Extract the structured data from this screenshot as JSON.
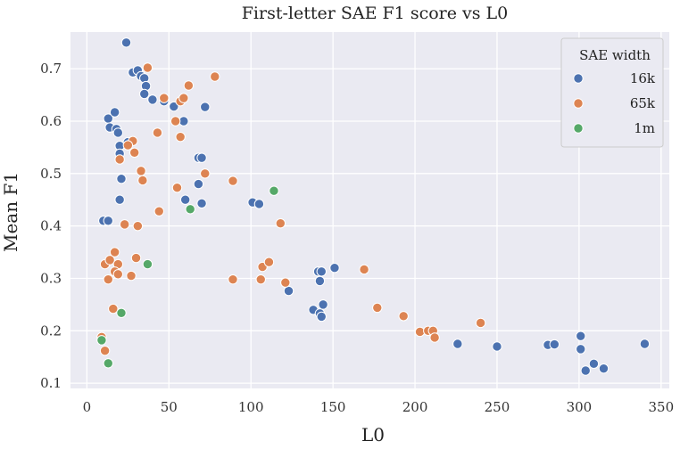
{
  "chart_data": {
    "type": "scatter",
    "title": "First-letter SAE F1 score vs L0",
    "xlabel": "L0",
    "ylabel": "Mean F1",
    "xlim": [
      -10,
      355
    ],
    "ylim": [
      0.09,
      0.77
    ],
    "xticks": [
      0,
      50,
      100,
      150,
      200,
      250,
      300,
      350
    ],
    "yticks": [
      0.1,
      0.2,
      0.3,
      0.4,
      0.5,
      0.6,
      0.7
    ],
    "grid": true,
    "legend": {
      "title": "SAE width",
      "placement": "top-right"
    },
    "series": [
      {
        "name": "16k",
        "color": "#4c72b0",
        "points": [
          [
            24,
            0.75
          ],
          [
            28,
            0.693
          ],
          [
            31,
            0.697
          ],
          [
            33,
            0.686
          ],
          [
            35,
            0.682
          ],
          [
            36,
            0.667
          ],
          [
            35,
            0.652
          ],
          [
            40,
            0.641
          ],
          [
            47,
            0.638
          ],
          [
            53,
            0.628
          ],
          [
            72,
            0.627
          ],
          [
            13,
            0.605
          ],
          [
            14,
            0.588
          ],
          [
            17,
            0.617
          ],
          [
            18,
            0.585
          ],
          [
            19,
            0.578
          ],
          [
            20,
            0.553
          ],
          [
            20,
            0.538
          ],
          [
            25,
            0.56
          ],
          [
            21,
            0.49
          ],
          [
            20,
            0.45
          ],
          [
            10,
            0.41
          ],
          [
            13,
            0.41
          ],
          [
            59,
            0.6
          ],
          [
            68,
            0.53
          ],
          [
            70,
            0.53
          ],
          [
            68,
            0.48
          ],
          [
            60,
            0.45
          ],
          [
            70,
            0.443
          ],
          [
            101,
            0.445
          ],
          [
            105,
            0.442
          ],
          [
            123,
            0.276
          ],
          [
            138,
            0.24
          ],
          [
            141,
            0.313
          ],
          [
            143,
            0.313
          ],
          [
            142,
            0.295
          ],
          [
            142,
            0.233
          ],
          [
            143,
            0.227
          ],
          [
            144,
            0.25
          ],
          [
            151,
            0.32
          ],
          [
            226,
            0.175
          ],
          [
            250,
            0.17
          ],
          [
            281,
            0.173
          ],
          [
            285,
            0.174
          ],
          [
            301,
            0.19
          ],
          [
            301,
            0.165
          ],
          [
            304,
            0.124
          ],
          [
            309,
            0.137
          ],
          [
            315,
            0.128
          ],
          [
            340,
            0.175
          ]
        ]
      },
      {
        "name": "65k",
        "color": "#dd8452",
        "points": [
          [
            37,
            0.702
          ],
          [
            62,
            0.668
          ],
          [
            78,
            0.685
          ],
          [
            47,
            0.644
          ],
          [
            57,
            0.638
          ],
          [
            59,
            0.644
          ],
          [
            54,
            0.6
          ],
          [
            57,
            0.57
          ],
          [
            43,
            0.578
          ],
          [
            28,
            0.562
          ],
          [
            25,
            0.554
          ],
          [
            29,
            0.54
          ],
          [
            20,
            0.527
          ],
          [
            33,
            0.505
          ],
          [
            34,
            0.487
          ],
          [
            55,
            0.473
          ],
          [
            72,
            0.5
          ],
          [
            89,
            0.486
          ],
          [
            44,
            0.428
          ],
          [
            23,
            0.403
          ],
          [
            31,
            0.4
          ],
          [
            118,
            0.405
          ],
          [
            17,
            0.35
          ],
          [
            11,
            0.327
          ],
          [
            14,
            0.335
          ],
          [
            19,
            0.327
          ],
          [
            17,
            0.313
          ],
          [
            19,
            0.308
          ],
          [
            13,
            0.298
          ],
          [
            27,
            0.305
          ],
          [
            30,
            0.339
          ],
          [
            89,
            0.298
          ],
          [
            106,
            0.298
          ],
          [
            107,
            0.322
          ],
          [
            111,
            0.331
          ],
          [
            121,
            0.292
          ],
          [
            169,
            0.317
          ],
          [
            177,
            0.244
          ],
          [
            193,
            0.228
          ],
          [
            203,
            0.198
          ],
          [
            208,
            0.2
          ],
          [
            211,
            0.2
          ],
          [
            212,
            0.187
          ],
          [
            240,
            0.215
          ],
          [
            16,
            0.242
          ],
          [
            9,
            0.188
          ],
          [
            11,
            0.162
          ]
        ]
      },
      {
        "name": "1m",
        "color": "#55a868",
        "points": [
          [
            114,
            0.467
          ],
          [
            63,
            0.432
          ],
          [
            37,
            0.327
          ],
          [
            21,
            0.234
          ],
          [
            9,
            0.182
          ],
          [
            13,
            0.138
          ]
        ]
      }
    ]
  }
}
